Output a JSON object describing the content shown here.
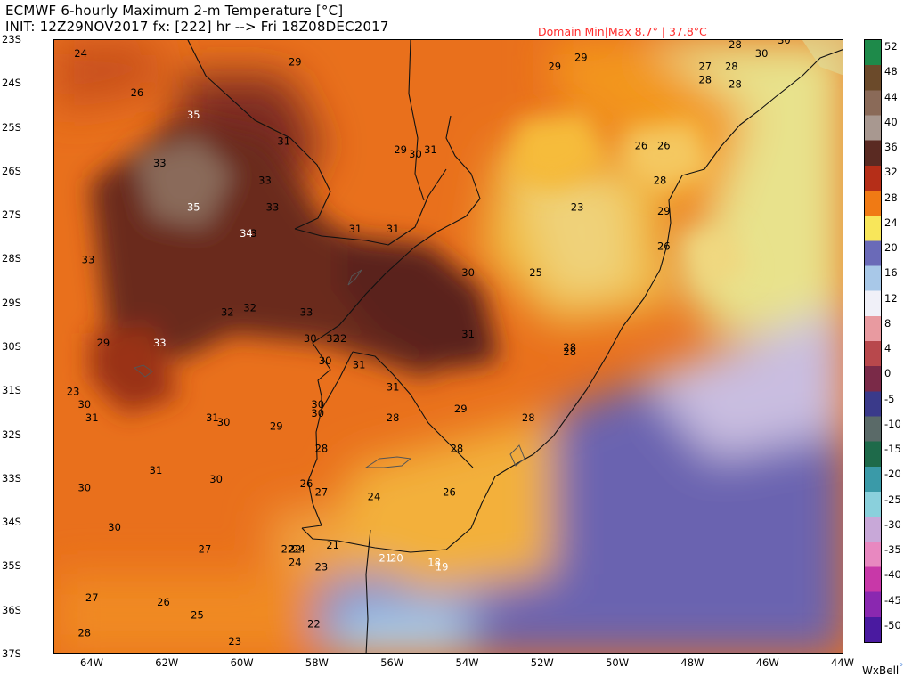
{
  "header": {
    "line1": "ECMWF 6-hourly Maximum 2-m Temperature [°C]",
    "line2": "INIT: 12Z29NOV2017 fx: [222] hr --> Fri 18Z08DEC2017",
    "domain_minmax": "Domain Min|Max 8.7° | 37.8°C"
  },
  "brand": {
    "name": "WxBell",
    "dot": "°"
  },
  "chart_data": {
    "type": "heatmap",
    "variable": "6-hourly Maximum 2-m Temperature",
    "unit": "°C",
    "lon_range": [
      -65,
      -44
    ],
    "lat_range": [
      -37,
      -23
    ],
    "lat_ticks": [
      "23S",
      "24S",
      "25S",
      "26S",
      "27S",
      "28S",
      "29S",
      "30S",
      "31S",
      "32S",
      "33S",
      "34S",
      "35S",
      "36S",
      "37S"
    ],
    "lon_ticks": [
      "64W",
      "62W",
      "60W",
      "58W",
      "56W",
      "54W",
      "52W",
      "50W",
      "48W",
      "46W",
      "44W"
    ],
    "colorbar": {
      "labels": [
        "52",
        "48",
        "44",
        "40",
        "36",
        "32",
        "28",
        "24",
        "20",
        "16",
        "12",
        "8",
        "4",
        "0",
        "-5",
        "-10",
        "-15",
        "-20",
        "-25",
        "-30",
        "-35",
        "-40",
        "-45",
        "-50"
      ],
      "colors": [
        "#1e8a4a",
        "#6b4a2a",
        "#8a6a58",
        "#a89890",
        "#5a2a22",
        "#b52e18",
        "#f07a14",
        "#f8e65a",
        "#6a6ab8",
        "#a8c8e8",
        "#f0f0f8",
        "#e89aa0",
        "#b8484c",
        "#7a2a48",
        "#3a3a8a",
        "#5a6a68",
        "#1e6a4a",
        "#3a9aa8",
        "#8ad0dc",
        "#c8a8d8",
        "#e888c0",
        "#c838a8",
        "#8a28b0",
        "#4a1aa0"
      ]
    },
    "station_values": [
      {
        "lon": -64.3,
        "lat": -23.3,
        "value": "24",
        "color": "#000000"
      },
      {
        "lon": -62.8,
        "lat": -24.2,
        "value": "26",
        "color": "#000000"
      },
      {
        "lon": -58.6,
        "lat": -23.5,
        "value": "29",
        "color": "#000000"
      },
      {
        "lon": -61.3,
        "lat": -24.7,
        "value": "35",
        "color": "#ffffff"
      },
      {
        "lon": -62.2,
        "lat": -25.8,
        "value": "33",
        "color": "#000000"
      },
      {
        "lon": -58.9,
        "lat": -25.3,
        "value": "31",
        "color": "#000000"
      },
      {
        "lon": -59.4,
        "lat": -26.2,
        "value": "33",
        "color": "#000000"
      },
      {
        "lon": -61.3,
        "lat": -26.8,
        "value": "35",
        "color": "#ffffff"
      },
      {
        "lon": -59.2,
        "lat": -26.8,
        "value": "33",
        "color": "#000000"
      },
      {
        "lon": -59.9,
        "lat": -27.4,
        "value": "34",
        "color": "#ffffff"
      },
      {
        "lon": -59.7,
        "lat": -27.4,
        "value": "3",
        "color": "#000000"
      },
      {
        "lon": -57.0,
        "lat": -27.3,
        "value": "31",
        "color": "#000000"
      },
      {
        "lon": -56.0,
        "lat": -27.3,
        "value": "31",
        "color": "#000000"
      },
      {
        "lon": -55.8,
        "lat": -25.5,
        "value": "29",
        "color": "#000000"
      },
      {
        "lon": -55.4,
        "lat": -25.6,
        "value": "30",
        "color": "#000000"
      },
      {
        "lon": -55.0,
        "lat": -25.5,
        "value": "31",
        "color": "#000000"
      },
      {
        "lon": -64.1,
        "lat": -28.0,
        "value": "33",
        "color": "#000000"
      },
      {
        "lon": -54.0,
        "lat": -28.3,
        "value": "30",
        "color": "#000000"
      },
      {
        "lon": -52.2,
        "lat": -28.3,
        "value": "25",
        "color": "#000000"
      },
      {
        "lon": -51.1,
        "lat": -26.8,
        "value": "23",
        "color": "#000000"
      },
      {
        "lon": -51.7,
        "lat": -23.6,
        "value": "29",
        "color": "#000000"
      },
      {
        "lon": -51.0,
        "lat": -23.4,
        "value": "29",
        "color": "#000000"
      },
      {
        "lon": -47.7,
        "lat": -23.6,
        "value": "27",
        "color": "#000000"
      },
      {
        "lon": -47.0,
        "lat": -23.6,
        "value": "28",
        "color": "#000000"
      },
      {
        "lon": -46.9,
        "lat": -23.1,
        "value": "28",
        "color": "#000000"
      },
      {
        "lon": -46.2,
        "lat": -23.3,
        "value": "30",
        "color": "#000000"
      },
      {
        "lon": -45.6,
        "lat": -23.0,
        "value": "30",
        "color": "#000000"
      },
      {
        "lon": -47.7,
        "lat": -23.9,
        "value": "28",
        "color": "#000000"
      },
      {
        "lon": -46.9,
        "lat": -24.0,
        "value": "28",
        "color": "#000000"
      },
      {
        "lon": -49.4,
        "lat": -25.4,
        "value": "26",
        "color": "#000000"
      },
      {
        "lon": -48.8,
        "lat": -25.4,
        "value": "26",
        "color": "#000000"
      },
      {
        "lon": -48.9,
        "lat": -26.2,
        "value": "28",
        "color": "#000000"
      },
      {
        "lon": -48.8,
        "lat": -26.9,
        "value": "29",
        "color": "#000000"
      },
      {
        "lon": -48.8,
        "lat": -27.7,
        "value": "26",
        "color": "#000000"
      },
      {
        "lon": -60.4,
        "lat": -29.2,
        "value": "32",
        "color": "#000000"
      },
      {
        "lon": -59.8,
        "lat": -29.1,
        "value": "32",
        "color": "#000000"
      },
      {
        "lon": -58.3,
        "lat": -29.2,
        "value": "33",
        "color": "#000000"
      },
      {
        "lon": -58.2,
        "lat": -29.8,
        "value": "30",
        "color": "#000000"
      },
      {
        "lon": -57.6,
        "lat": -29.8,
        "value": "32",
        "color": "#000000"
      },
      {
        "lon": -57.4,
        "lat": -29.8,
        "value": "32",
        "color": "#000000"
      },
      {
        "lon": -54.0,
        "lat": -29.7,
        "value": "31",
        "color": "#000000"
      },
      {
        "lon": -63.7,
        "lat": -29.9,
        "value": "29",
        "color": "#000000"
      },
      {
        "lon": -62.2,
        "lat": -29.9,
        "value": "33",
        "color": "#ffffff"
      },
      {
        "lon": -57.8,
        "lat": -30.3,
        "value": "30",
        "color": "#000000"
      },
      {
        "lon": -56.9,
        "lat": -30.4,
        "value": "31",
        "color": "#000000"
      },
      {
        "lon": -56.0,
        "lat": -30.9,
        "value": "31",
        "color": "#000000"
      },
      {
        "lon": -51.3,
        "lat": -30.0,
        "value": "28",
        "color": "#000000"
      },
      {
        "lon": -51.3,
        "lat": -30.1,
        "value": "28",
        "color": "#000000"
      },
      {
        "lon": -64.5,
        "lat": -31.0,
        "value": "23",
        "color": "#000000"
      },
      {
        "lon": -64.2,
        "lat": -31.3,
        "value": "30",
        "color": "#000000"
      },
      {
        "lon": -64.0,
        "lat": -31.6,
        "value": "31",
        "color": "#000000"
      },
      {
        "lon": -60.8,
        "lat": -31.6,
        "value": "31",
        "color": "#000000"
      },
      {
        "lon": -60.5,
        "lat": -31.7,
        "value": "30",
        "color": "#000000"
      },
      {
        "lon": -59.1,
        "lat": -31.8,
        "value": "29",
        "color": "#000000"
      },
      {
        "lon": -58.0,
        "lat": -31.3,
        "value": "30",
        "color": "#000000"
      },
      {
        "lon": -58.0,
        "lat": -31.5,
        "value": "30",
        "color": "#000000"
      },
      {
        "lon": -56.0,
        "lat": -31.6,
        "value": "28",
        "color": "#000000"
      },
      {
        "lon": -54.2,
        "lat": -31.4,
        "value": "29",
        "color": "#000000"
      },
      {
        "lon": -52.4,
        "lat": -31.6,
        "value": "28",
        "color": "#000000"
      },
      {
        "lon": -57.9,
        "lat": -32.3,
        "value": "28",
        "color": "#000000"
      },
      {
        "lon": -54.3,
        "lat": -32.3,
        "value": "28",
        "color": "#000000"
      },
      {
        "lon": -62.3,
        "lat": -32.8,
        "value": "31",
        "color": "#000000"
      },
      {
        "lon": -60.7,
        "lat": -33.0,
        "value": "30",
        "color": "#000000"
      },
      {
        "lon": -64.2,
        "lat": -33.2,
        "value": "30",
        "color": "#000000"
      },
      {
        "lon": -58.3,
        "lat": -33.1,
        "value": "26",
        "color": "#000000"
      },
      {
        "lon": -57.9,
        "lat": -33.3,
        "value": "27",
        "color": "#000000"
      },
      {
        "lon": -56.5,
        "lat": -33.4,
        "value": "24",
        "color": "#000000"
      },
      {
        "lon": -54.5,
        "lat": -33.3,
        "value": "26",
        "color": "#000000"
      },
      {
        "lon": -63.4,
        "lat": -34.1,
        "value": "30",
        "color": "#000000"
      },
      {
        "lon": -61.0,
        "lat": -34.6,
        "value": "27",
        "color": "#000000"
      },
      {
        "lon": -58.8,
        "lat": -34.6,
        "value": "22",
        "color": "#000000"
      },
      {
        "lon": -58.6,
        "lat": -34.6,
        "value": "22",
        "color": "#000000"
      },
      {
        "lon": -58.5,
        "lat": -34.6,
        "value": "24",
        "color": "#000000"
      },
      {
        "lon": -57.6,
        "lat": -34.5,
        "value": "21",
        "color": "#000000"
      },
      {
        "lon": -58.6,
        "lat": -34.9,
        "value": "24",
        "color": "#000000"
      },
      {
        "lon": -57.9,
        "lat": -35.0,
        "value": "23",
        "color": "#000000"
      },
      {
        "lon": -56.2,
        "lat": -34.8,
        "value": "21",
        "color": "#ffffff"
      },
      {
        "lon": -55.9,
        "lat": -34.8,
        "value": "20",
        "color": "#ffffff"
      },
      {
        "lon": -54.9,
        "lat": -34.9,
        "value": "18",
        "color": "#ffffff"
      },
      {
        "lon": -54.7,
        "lat": -35.0,
        "value": "19",
        "color": "#ffffff"
      },
      {
        "lon": -64.0,
        "lat": -35.7,
        "value": "27",
        "color": "#000000"
      },
      {
        "lon": -62.1,
        "lat": -35.8,
        "value": "26",
        "color": "#000000"
      },
      {
        "lon": -61.2,
        "lat": -36.1,
        "value": "25",
        "color": "#000000"
      },
      {
        "lon": -58.1,
        "lat": -36.3,
        "value": "22",
        "color": "#000000"
      },
      {
        "lon": -64.2,
        "lat": -36.5,
        "value": "28",
        "color": "#000000"
      },
      {
        "lon": -60.2,
        "lat": -36.7,
        "value": "23",
        "color": "#000000"
      }
    ]
  }
}
